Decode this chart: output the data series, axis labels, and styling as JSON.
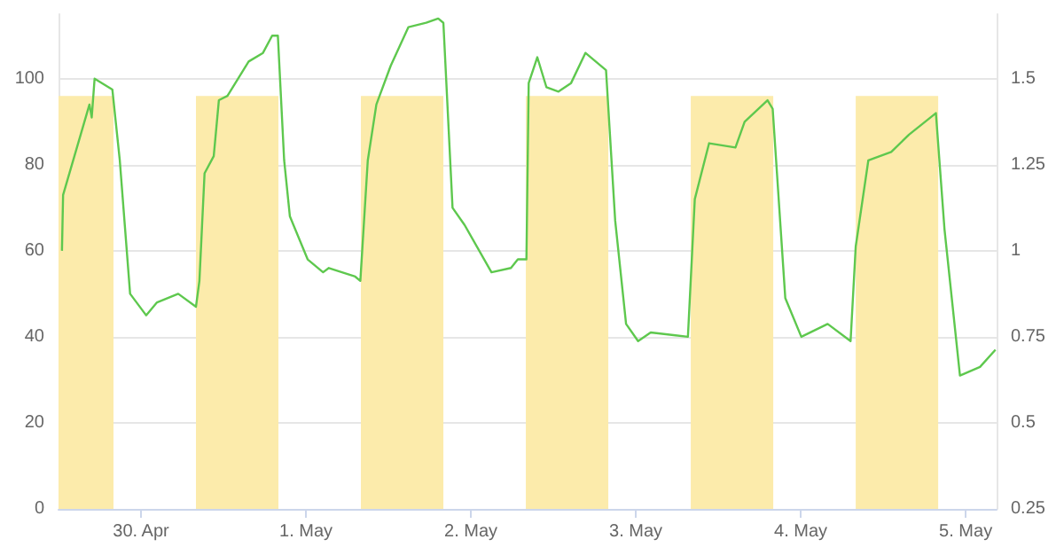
{
  "chart_data": {
    "type": "line",
    "xlim": [
      "--04-29T12:00",
      "--05-05T04:30"
    ],
    "xticks": [
      {
        "value": "--04-30",
        "label": "30. Apr"
      },
      {
        "value": "--05-01",
        "label": "1. May"
      },
      {
        "value": "--05-02",
        "label": "2. May"
      },
      {
        "value": "--05-03",
        "label": "3. May"
      },
      {
        "value": "--05-04",
        "label": "4. May"
      },
      {
        "value": "--05-05",
        "label": "5. May"
      }
    ],
    "ylim": [
      0,
      115
    ],
    "yticks": [
      0,
      20,
      40,
      60,
      80,
      100
    ],
    "y2lim": [
      0.25,
      1.6875
    ],
    "y2ticks": [
      0.25,
      0.5,
      0.75,
      1,
      1.25,
      1.5
    ],
    "grid": "y",
    "marker": "none",
    "line_style": "solid",
    "series": [
      {
        "type": "area",
        "axis": "y2",
        "color": "#fcebab",
        "x": [
          "--04-29T12:00",
          "--04-29T20:00",
          "--04-30T02:00",
          "--04-30T08:00",
          "--04-30T20:00",
          "--05-01T02:00",
          "--05-01T08:00",
          "--05-01T20:00",
          "--05-02T02:00",
          "--05-02T08:00",
          "--05-02T20:00",
          "--05-03T02:00",
          "--05-03T08:00",
          "--05-03T20:00",
          "--05-04T02:00",
          "--05-04T08:00",
          "--05-04T20:00"
        ],
        "values": [
          1.45,
          1.45,
          null,
          1.45,
          1.45,
          null,
          1.45,
          1.45,
          null,
          1.45,
          1.45,
          null,
          1.45,
          1.45,
          null,
          1.45,
          1.45
        ]
      },
      {
        "color": "#5ec84e",
        "x": [
          "--04-29T12:30",
          "--04-29T12:40",
          "--04-29T16:30",
          "--04-29T16:50",
          "--04-29T17:15",
          "--04-29T19:50",
          "--04-29T20:55",
          "--04-29T22:25",
          "--04-30T00:45",
          "--04-30T02:20",
          "--04-30T05:25",
          "--04-30T08:00",
          "--04-30T08:30",
          "--04-30T09:15",
          "--04-30T10:35",
          "--04-30T11:20",
          "--04-30T12:35",
          "--04-30T15:40",
          "--04-30T17:45",
          "--04-30T19:05",
          "--04-30T19:55",
          "--04-30T20:50",
          "--04-30T21:40",
          "--05-01T00:15",
          "--05-01T02:30",
          "--05-01T03:20",
          "--05-01T07:10",
          "--05-01T07:55",
          "--05-01T09:00",
          "--05-01T10:15",
          "--05-01T12:20",
          "--05-01T14:55",
          "--05-01T17:30",
          "--05-01T19:15",
          "--05-01T20:00",
          "--05-01T21:20",
          "--05-01T23:05",
          "--05-02T03:00",
          "--05-02T05:50",
          "--05-02T06:50",
          "--05-02T08:05",
          "--05-02T08:25",
          "--05-02T09:40",
          "--05-02T11:00",
          "--05-02T12:45",
          "--05-02T14:35",
          "--05-02T16:40",
          "--05-02T19:40",
          "--05-02T21:00",
          "--05-02T22:35",
          "--05-03T00:20",
          "--05-03T02:10",
          "--05-03T07:35",
          "--05-03T08:35",
          "--05-03T10:40",
          "--05-03T14:30",
          "--05-03T15:50",
          "--05-03T19:10",
          "--05-03T19:55",
          "--05-03T21:45",
          "--05-04T00:05",
          "--05-04T03:55",
          "--05-04T07:15",
          "--05-04T08:00",
          "--05-04T09:50",
          "--05-04T13:10",
          "--05-04T15:45",
          "--05-04T19:40",
          "--05-04T20:55",
          "--05-04T23:10",
          "--05-05T02:05",
          "--05-05T04:20"
        ],
        "values": [
          60,
          73,
          94,
          91,
          100,
          97.5,
          81,
          50,
          45,
          48,
          50,
          47,
          53,
          78,
          82,
          95,
          96,
          104,
          106,
          110,
          110,
          81,
          68,
          58,
          55,
          56,
          54,
          53,
          81,
          94,
          103,
          112,
          113,
          114,
          113,
          70,
          66,
          55,
          56,
          58,
          58,
          99,
          105,
          98,
          97,
          99,
          106,
          102,
          67,
          43,
          39,
          41,
          40,
          72,
          85,
          84,
          90,
          95,
          93,
          49,
          40,
          43,
          39,
          61,
          81,
          83,
          87,
          92,
          65,
          31,
          33,
          37
        ]
      }
    ]
  }
}
